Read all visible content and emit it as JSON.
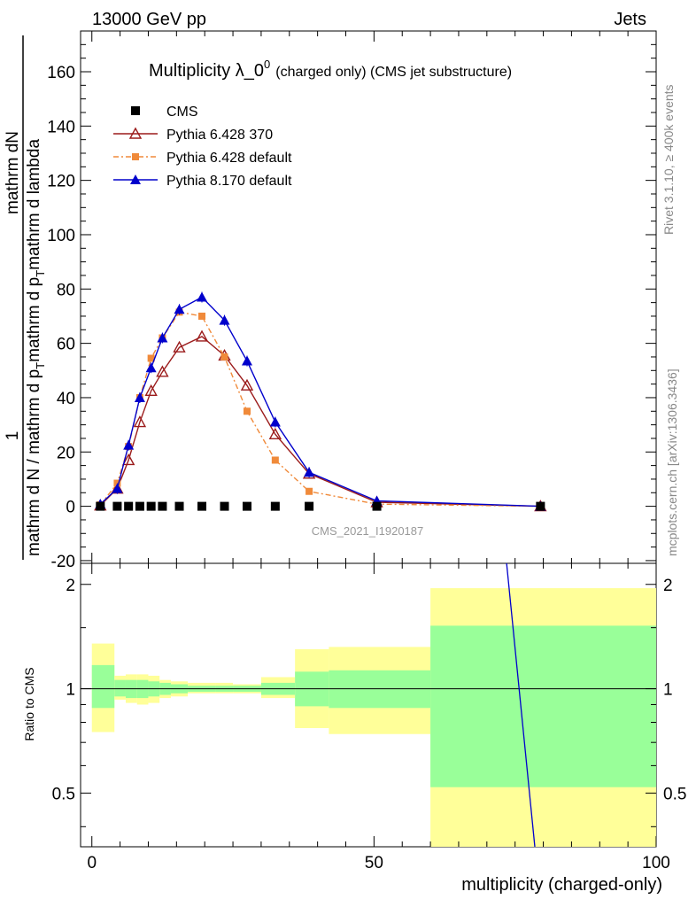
{
  "header": {
    "left": "13000 GeV pp",
    "right": "Jets"
  },
  "side_labels": {
    "rivet": "Rivet 3.1.10, ≥ 400k events",
    "mcplots": "mcplots.cern.ch [arXiv:1306.3436]"
  },
  "watermark": "CMS_2021_I1920187",
  "chart_data": {
    "type": "line",
    "title_main": "Multiplicity λ_0",
    "title_sup": "0",
    "title_paren": "(charged only) (CMS jet substructure)",
    "ylabel_numer": "1",
    "ylabel_numer2": "mathrm dN",
    "ylabel_denom": "mathrm d N / mathrm d p",
    "ylabel_denom_sub": "T",
    "ylabel_denom2": "mathrm d p",
    "ylabel_denom2_sub": "T",
    "ylabel_denom3": "mathrm d lambda",
    "xlabel": "multiplicity (charged-only)",
    "ratio_ylabel": "Ratio to CMS",
    "xlim": [
      -2,
      100
    ],
    "ylim": [
      -21,
      175
    ],
    "ratio_ylim": [
      0.35,
      2.3
    ],
    "yticks": [
      -20,
      0,
      20,
      40,
      60,
      80,
      100,
      120,
      140,
      160
    ],
    "xticks": [
      0,
      50,
      100
    ],
    "ratio_ticks": [
      0.5,
      1,
      2
    ],
    "series": [
      {
        "name": "CMS",
        "color": "#000000",
        "marker": "square",
        "x": [
          1.5,
          4.5,
          6.5,
          8.5,
          10.5,
          12.5,
          15.5,
          19.5,
          23.5,
          27.5,
          32.5,
          38.5,
          50.5,
          79.5
        ],
        "y": [
          0,
          0,
          0,
          0,
          0,
          0,
          0,
          0,
          0,
          0,
          0,
          0,
          0,
          0
        ]
      },
      {
        "name": "Pythia 6.428 370",
        "color": "#9b1b1b",
        "marker": "triangle-open",
        "x": [
          1.5,
          4.5,
          6.5,
          8.5,
          10.5,
          12.5,
          15.5,
          19.5,
          23.5,
          27.5,
          32.5,
          38.5,
          50.5,
          79.5
        ],
        "y": [
          0.3,
          6.5,
          17,
          31,
          42.5,
          49.5,
          58.5,
          62.5,
          55.5,
          44.5,
          26.5,
          12,
          1.5,
          0
        ]
      },
      {
        "name": "Pythia 6.428 default",
        "color": "#f08a3a",
        "marker": "square-small",
        "x": [
          1.5,
          4.5,
          6.5,
          8.5,
          10.5,
          12.5,
          15.5,
          19.5,
          23.5,
          27.5,
          32.5,
          38.5,
          50.5,
          79.5
        ],
        "y": [
          0.5,
          8.5,
          22,
          40,
          54.5,
          62,
          71.5,
          70,
          55,
          35,
          17,
          5.5,
          0.8,
          0
        ]
      },
      {
        "name": "Pythia 8.170 default",
        "color": "#0000cc",
        "marker": "triangle-filled",
        "x": [
          1.5,
          4.5,
          6.5,
          8.5,
          10.5,
          12.5,
          15.5,
          19.5,
          23.5,
          27.5,
          32.5,
          38.5,
          50.5,
          79.5
        ],
        "y": [
          0.8,
          6.5,
          22.5,
          40,
          51,
          62,
          72.5,
          77,
          68.5,
          53.5,
          31,
          12.5,
          2,
          0
        ]
      }
    ],
    "ratio_bands": [
      {
        "x0": 0,
        "x1": 4,
        "inner": [
          0.88,
          1.17
        ],
        "outer": [
          0.75,
          1.35
        ]
      },
      {
        "x0": 4,
        "x1": 6,
        "inner": [
          0.95,
          1.06
        ],
        "outer": [
          0.93,
          1.09
        ]
      },
      {
        "x0": 6,
        "x1": 8,
        "inner": [
          0.94,
          1.06
        ],
        "outer": [
          0.91,
          1.1
        ]
      },
      {
        "x0": 8,
        "x1": 10,
        "inner": [
          0.94,
          1.06
        ],
        "outer": [
          0.9,
          1.1
        ]
      },
      {
        "x0": 10,
        "x1": 12,
        "inner": [
          0.95,
          1.05
        ],
        "outer": [
          0.91,
          1.09
        ]
      },
      {
        "x0": 12,
        "x1": 14,
        "inner": [
          0.96,
          1.04
        ],
        "outer": [
          0.94,
          1.06
        ]
      },
      {
        "x0": 14,
        "x1": 17,
        "inner": [
          0.97,
          1.03
        ],
        "outer": [
          0.95,
          1.05
        ]
      },
      {
        "x0": 17,
        "x1": 22,
        "inner": [
          0.98,
          1.02
        ],
        "outer": [
          0.97,
          1.04
        ]
      },
      {
        "x0": 22,
        "x1": 25,
        "inner": [
          0.98,
          1.02
        ],
        "outer": [
          0.97,
          1.04
        ]
      },
      {
        "x0": 25,
        "x1": 30,
        "inner": [
          0.98,
          1.02
        ],
        "outer": [
          0.97,
          1.03
        ]
      },
      {
        "x0": 30,
        "x1": 36,
        "inner": [
          0.96,
          1.04
        ],
        "outer": [
          0.94,
          1.08
        ]
      },
      {
        "x0": 36,
        "x1": 42,
        "inner": [
          0.89,
          1.12
        ],
        "outer": [
          0.77,
          1.3
        ]
      },
      {
        "x0": 42,
        "x1": 60,
        "inner": [
          0.88,
          1.13
        ],
        "outer": [
          0.74,
          1.32
        ]
      },
      {
        "x0": 60,
        "x1": 100,
        "inner": [
          0.52,
          1.52
        ],
        "outer": [
          0.3,
          1.95
        ]
      }
    ],
    "ratio_line": {
      "name": "Pythia 8.170 default",
      "color": "#0000cc",
      "x": [
        73.5,
        78.5
      ],
      "y": [
        2.3,
        0.35
      ]
    }
  }
}
